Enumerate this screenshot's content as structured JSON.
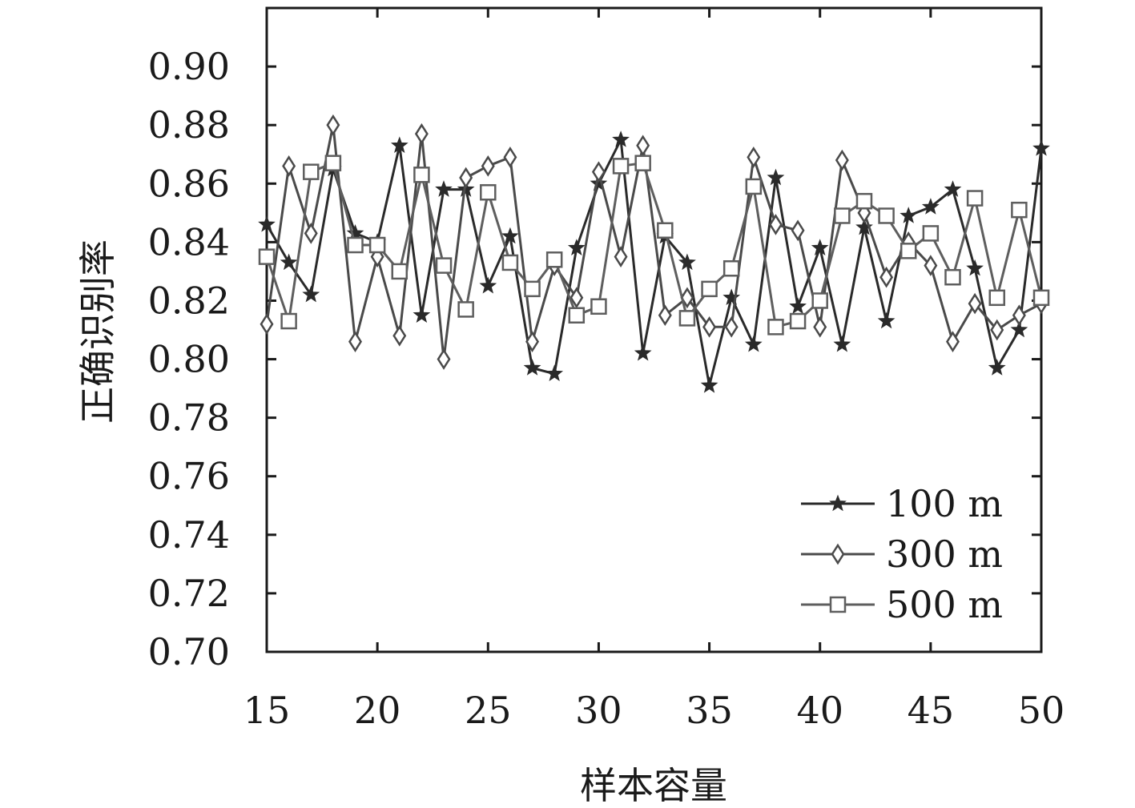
{
  "chart_data": {
    "type": "line",
    "xlabel": "样本容量",
    "ylabel": "正确识别率",
    "xlim": [
      15,
      50
    ],
    "ylim": [
      0.7,
      0.92
    ],
    "xticks": [
      "15",
      "20",
      "25",
      "30",
      "35",
      "40",
      "45",
      "50"
    ],
    "xtick_values": [
      15,
      20,
      25,
      30,
      35,
      40,
      45,
      50
    ],
    "yticks": [
      "0.70",
      "0.72",
      "0.74",
      "0.76",
      "0.78",
      "0.80",
      "0.82",
      "0.84",
      "0.86",
      "0.88",
      "0.90"
    ],
    "ytick_values": [
      0.7,
      0.72,
      0.74,
      0.76,
      0.78,
      0.8,
      0.82,
      0.84,
      0.86,
      0.88,
      0.9
    ],
    "grid": false,
    "legend_position": "bottom-right",
    "x": [
      15,
      16,
      17,
      18,
      19,
      20,
      21,
      22,
      23,
      24,
      25,
      26,
      27,
      28,
      29,
      30,
      31,
      32,
      33,
      34,
      35,
      36,
      37,
      38,
      39,
      40,
      41,
      42,
      43,
      44,
      45,
      46,
      47,
      48,
      49,
      50
    ],
    "series": [
      {
        "name": "100 m",
        "marker": "star",
        "color": "#2a2a2a",
        "values": [
          0.846,
          0.833,
          0.822,
          0.865,
          0.843,
          0.84,
          0.873,
          0.815,
          0.858,
          0.858,
          0.825,
          0.842,
          0.797,
          0.795,
          0.838,
          0.86,
          0.875,
          0.802,
          0.842,
          0.833,
          0.791,
          0.821,
          0.805,
          0.862,
          0.818,
          0.838,
          0.805,
          0.845,
          0.813,
          0.849,
          0.852,
          0.858,
          0.831,
          0.797,
          0.81,
          0.872
        ]
      },
      {
        "name": "300 m",
        "marker": "diamond",
        "color": "#4a4a4a",
        "values": [
          0.812,
          0.866,
          0.843,
          0.88,
          0.806,
          0.835,
          0.808,
          0.877,
          0.8,
          0.862,
          0.866,
          0.869,
          0.806,
          0.832,
          0.821,
          0.864,
          0.835,
          0.873,
          0.815,
          0.821,
          0.811,
          0.811,
          0.869,
          0.846,
          0.844,
          0.811,
          0.868,
          0.85,
          0.828,
          0.84,
          0.832,
          0.806,
          0.819,
          0.81,
          0.815,
          0.819
        ]
      },
      {
        "name": "500 m",
        "marker": "square",
        "color": "#5e5e5e",
        "values": [
          0.835,
          0.813,
          0.864,
          0.867,
          0.839,
          0.839,
          0.83,
          0.863,
          0.832,
          0.817,
          0.857,
          0.833,
          0.824,
          0.834,
          0.815,
          0.818,
          0.866,
          0.867,
          0.844,
          0.814,
          0.824,
          0.831,
          0.859,
          0.811,
          0.813,
          0.82,
          0.849,
          0.854,
          0.849,
          0.837,
          0.843,
          0.828,
          0.855,
          0.821,
          0.851,
          0.821
        ]
      }
    ]
  }
}
